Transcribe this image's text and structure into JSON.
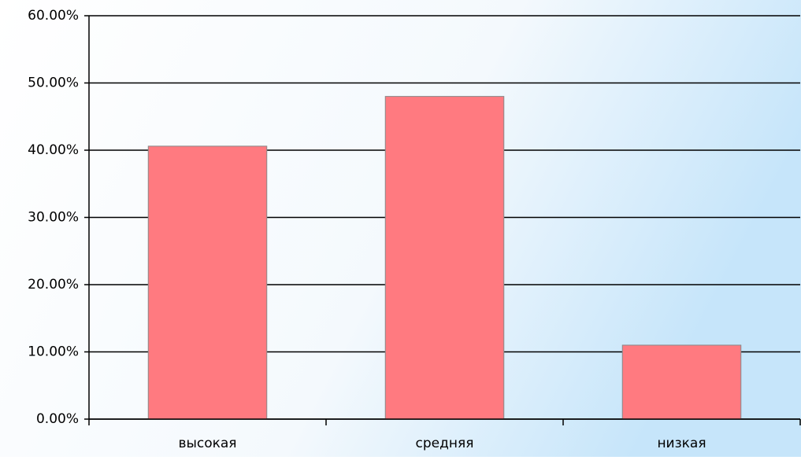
{
  "chart_data": {
    "type": "bar",
    "categories": [
      "высокая",
      "средняя",
      "низкая"
    ],
    "values": [
      40.6,
      48.0,
      11.0
    ],
    "color": "#ff7a80",
    "ylim": [
      0,
      60
    ],
    "yticks": [
      {
        "value": 0,
        "label": "0.00%"
      },
      {
        "value": 10,
        "label": "10.00%"
      },
      {
        "value": 20,
        "label": "20.00%"
      },
      {
        "value": 30,
        "label": "30.00%"
      },
      {
        "value": 40,
        "label": "40.00%"
      },
      {
        "value": 50,
        "label": "50.00%"
      },
      {
        "value": 60,
        "label": "60.00%"
      }
    ],
    "grid": true
  }
}
